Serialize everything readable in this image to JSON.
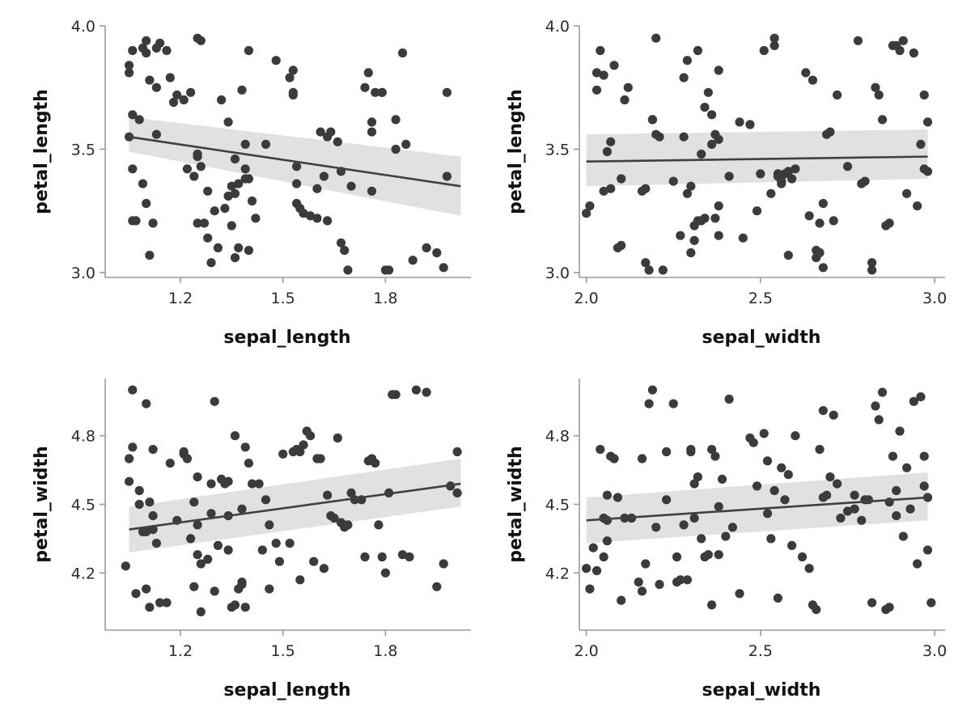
{
  "colors": {
    "points": "#3b3b3b",
    "fit_line": "#404040",
    "ci_band": "#d9d9d9",
    "axis": "#9a9a9a"
  },
  "chart_data": [
    {
      "type": "scatter",
      "title": "",
      "xlabel": "sepal_length",
      "ylabel": "petal_length",
      "xlim": [
        0.98,
        2.05
      ],
      "ylim": [
        2.98,
        4.0
      ],
      "xticks": [
        "1.2",
        "1.5",
        "1.8"
      ],
      "yticks": [
        "3.0",
        "3.5",
        "4.0"
      ],
      "grid": false,
      "fit": {
        "x": [
          1.05,
          2.02
        ],
        "y": [
          3.55,
          3.35
        ],
        "ci_lower": [
          3.49,
          3.23
        ],
        "ci_upper": [
          3.63,
          3.47
        ]
      },
      "x": [
        1.05,
        1.06,
        1.06,
        1.05,
        1.06,
        1.07,
        1.06,
        1.05,
        1.08,
        1.09,
        1.1,
        1.11,
        1.13,
        1.14,
        1.16,
        1.13,
        1.09,
        1.1,
        1.11,
        1.12,
        1.1,
        1.13,
        1.17,
        1.19,
        1.18,
        1.22,
        1.24,
        1.25,
        1.27,
        1.28,
        1.29,
        1.25,
        1.26,
        1.21,
        1.23,
        1.25,
        1.25,
        1.26,
        1.28,
        1.3,
        1.32,
        1.34,
        1.35,
        1.33,
        1.31,
        1.36,
        1.38,
        1.37,
        1.36,
        1.41,
        1.42,
        1.4,
        1.39,
        1.39,
        1.39,
        1.4,
        1.4,
        1.45,
        1.35,
        1.36,
        1.34,
        1.37,
        1.48,
        1.52,
        1.53,
        1.53,
        1.53,
        1.54,
        1.54,
        1.54,
        1.55,
        1.56,
        1.58,
        1.6,
        1.6,
        1.61,
        1.63,
        1.64,
        1.66,
        1.67,
        1.67,
        1.68,
        1.69,
        1.7,
        1.74,
        1.75,
        1.76,
        1.76,
        1.76,
        1.77,
        1.79,
        1.83,
        1.83,
        1.85,
        1.86,
        1.88,
        1.8,
        1.81,
        1.79,
        1.62,
        1.63,
        1.92,
        1.95,
        1.97,
        1.98,
        1.98
      ],
      "y": [
        3.84,
        3.9,
        3.64,
        3.55,
        3.42,
        3.21,
        3.21,
        3.81,
        3.62,
        3.91,
        3.89,
        3.78,
        3.91,
        3.93,
        3.9,
        3.56,
        3.36,
        3.28,
        3.07,
        3.2,
        3.94,
        3.75,
        3.79,
        3.72,
        3.69,
        3.42,
        3.39,
        3.2,
        3.2,
        3.14,
        3.04,
        3.95,
        3.94,
        3.7,
        3.73,
        3.48,
        3.47,
        3.43,
        3.33,
        3.25,
        3.7,
        3.61,
        3.35,
        3.26,
        3.1,
        3.06,
        3.74,
        3.36,
        3.32,
        3.29,
        3.22,
        3.9,
        3.52,
        3.38,
        3.42,
        3.38,
        3.09,
        3.52,
        3.19,
        3.46,
        3.31,
        3.1,
        3.86,
        3.79,
        3.72,
        3.82,
        3.73,
        3.43,
        3.36,
        3.28,
        3.26,
        3.24,
        3.23,
        3.22,
        3.34,
        3.57,
        3.55,
        3.57,
        3.53,
        3.41,
        3.12,
        3.09,
        3.01,
        3.35,
        3.75,
        3.81,
        3.61,
        3.57,
        3.33,
        3.73,
        3.73,
        3.62,
        3.5,
        3.89,
        3.52,
        3.05,
        3.01,
        3.01,
        3.73,
        3.39,
        3.21,
        3.1,
        3.08,
        3.02,
        3.39,
        3.73
      ]
    },
    {
      "type": "scatter",
      "title": "",
      "xlabel": "sepal_width",
      "ylabel": "petal_length",
      "xlim": [
        1.98,
        3.03
      ],
      "ylim": [
        2.98,
        4.0
      ],
      "xticks": [
        "2.0",
        "2.5",
        "3.0"
      ],
      "yticks": [
        "3.0",
        "3.5",
        "4.0"
      ],
      "grid": false,
      "fit": {
        "x": [
          2.0,
          2.98
        ],
        "y": [
          3.45,
          3.47
        ],
        "ci_lower": [
          3.35,
          3.38
        ],
        "ci_upper": [
          3.56,
          3.58
        ]
      },
      "x": [
        2.0,
        2.01,
        2.03,
        2.04,
        2.03,
        2.05,
        2.06,
        2.07,
        2.08,
        2.09,
        2.1,
        2.11,
        2.12,
        2.1,
        2.05,
        2.07,
        2.17,
        2.18,
        2.2,
        2.22,
        2.2,
        2.16,
        2.17,
        2.19,
        2.28,
        2.29,
        2.3,
        2.32,
        2.34,
        2.35,
        2.36,
        2.32,
        2.31,
        2.33,
        2.34,
        2.3,
        2.29,
        2.28,
        2.31,
        2.33,
        2.38,
        2.38,
        2.38,
        2.36,
        2.37,
        2.37,
        2.38,
        2.45,
        2.47,
        2.49,
        2.51,
        2.54,
        2.54,
        2.55,
        2.55,
        2.56,
        2.57,
        2.58,
        2.59,
        2.58,
        2.6,
        2.63,
        2.64,
        2.65,
        2.66,
        2.67,
        2.66,
        2.67,
        2.68,
        2.69,
        2.7,
        2.71,
        2.72,
        2.75,
        2.78,
        2.79,
        2.8,
        2.82,
        2.82,
        2.83,
        2.84,
        2.85,
        2.86,
        2.87,
        2.88,
        2.89,
        2.9,
        2.91,
        2.92,
        2.94,
        2.95,
        2.96,
        2.97,
        2.97,
        2.98,
        2.98,
        2.68,
        2.5,
        2.53,
        2.56,
        2.44,
        2.41,
        2.19,
        2.25,
        2.21,
        2.27
      ],
      "y": [
        3.24,
        3.27,
        3.74,
        3.9,
        3.81,
        3.8,
        3.49,
        3.53,
        3.84,
        3.1,
        3.11,
        3.7,
        3.75,
        3.38,
        3.33,
        3.34,
        3.04,
        3.01,
        3.95,
        3.01,
        3.56,
        3.33,
        3.34,
        3.62,
        3.79,
        3.32,
        3.35,
        3.21,
        3.22,
        3.73,
        3.64,
        3.9,
        3.13,
        3.48,
        3.67,
        3.08,
        3.86,
        3.55,
        3.19,
        3.21,
        3.54,
        3.82,
        3.27,
        3.52,
        3.56,
        3.22,
        3.15,
        3.14,
        3.6,
        3.25,
        3.9,
        3.92,
        3.95,
        3.4,
        3.39,
        3.37,
        3.4,
        3.41,
        3.38,
        3.07,
        3.42,
        3.81,
        3.23,
        3.78,
        3.09,
        3.2,
        3.06,
        3.08,
        3.28,
        3.56,
        3.57,
        3.21,
        3.72,
        3.43,
        3.94,
        3.36,
        3.37,
        3.04,
        3.01,
        3.75,
        3.72,
        3.62,
        3.19,
        3.2,
        3.92,
        3.92,
        3.9,
        3.94,
        3.32,
        3.89,
        3.27,
        3.52,
        3.72,
        3.42,
        3.41,
        3.61,
        3.02,
        3.4,
        3.32,
        3.36,
        3.61,
        3.39,
        3.62,
        3.37,
        3.55,
        3.15
      ]
    },
    {
      "type": "scatter",
      "title": "",
      "xlabel": "sepal_length",
      "ylabel": "petal_width",
      "xlim": [
        0.98,
        2.05
      ],
      "ylim": [
        3.95,
        5.05
      ],
      "xticks": [
        "1.2",
        "1.5",
        "1.8"
      ],
      "yticks": [
        "4.2",
        "4.5",
        "4.8"
      ],
      "grid": false,
      "fit": {
        "x": [
          1.05,
          2.02
        ],
        "y": [
          4.39,
          4.59
        ],
        "ci_lower": [
          4.29,
          4.49
        ],
        "ci_upper": [
          4.49,
          4.7
        ]
      },
      "x": [
        1.04,
        1.05,
        1.06,
        1.05,
        1.07,
        1.06,
        1.08,
        1.08,
        1.1,
        1.11,
        1.1,
        1.12,
        1.13,
        1.14,
        1.16,
        1.09,
        1.11,
        1.12,
        1.17,
        1.12,
        1.1,
        1.21,
        1.22,
        1.24,
        1.23,
        1.25,
        1.25,
        1.26,
        1.28,
        1.29,
        1.3,
        1.31,
        1.32,
        1.33,
        1.34,
        1.34,
        1.35,
        1.36,
        1.37,
        1.38,
        1.38,
        1.39,
        1.39,
        1.4,
        1.41,
        1.43,
        1.44,
        1.45,
        1.46,
        1.48,
        1.49,
        1.5,
        1.52,
        1.53,
        1.54,
        1.55,
        1.56,
        1.57,
        1.58,
        1.59,
        1.6,
        1.61,
        1.62,
        1.63,
        1.64,
        1.65,
        1.66,
        1.67,
        1.68,
        1.69,
        1.7,
        1.71,
        1.73,
        1.74,
        1.75,
        1.76,
        1.77,
        1.78,
        1.79,
        1.8,
        1.81,
        1.82,
        1.83,
        1.85,
        1.87,
        1.89,
        1.92,
        1.95,
        1.97,
        1.99,
        2.01,
        2.01,
        1.26,
        1.21,
        1.19,
        1.25,
        1.29,
        1.36,
        1.34,
        1.55,
        1.38,
        1.46,
        1.3,
        1.24
      ],
      "y": [
        4.23,
        4.7,
        4.75,
        4.6,
        4.11,
        5.0,
        4.56,
        4.5,
        4.38,
        4.05,
        4.94,
        4.74,
        4.33,
        4.07,
        4.07,
        4.38,
        4.51,
        4.39,
        4.68,
        4.45,
        4.13,
        4.73,
        4.7,
        4.51,
        4.35,
        4.41,
        4.28,
        4.24,
        4.26,
        4.59,
        4.95,
        4.32,
        4.61,
        4.59,
        4.3,
        4.6,
        4.05,
        4.06,
        4.13,
        4.16,
        4.48,
        4.75,
        4.05,
        4.68,
        4.59,
        4.59,
        4.3,
        4.52,
        4.41,
        4.33,
        4.25,
        4.72,
        4.33,
        4.73,
        4.74,
        4.73,
        4.76,
        4.82,
        4.8,
        4.25,
        4.7,
        4.7,
        4.22,
        4.54,
        4.45,
        4.44,
        4.79,
        4.42,
        4.4,
        4.41,
        4.55,
        4.52,
        4.52,
        4.27,
        4.69,
        4.7,
        4.68,
        4.41,
        4.27,
        4.2,
        4.55,
        4.98,
        4.98,
        4.28,
        4.27,
        5.0,
        4.99,
        4.14,
        4.24,
        4.58,
        4.55,
        4.73,
        4.03,
        4.72,
        4.43,
        4.62,
        4.46,
        4.8,
        4.45,
        4.17,
        4.15,
        4.13,
        4.12,
        4.14
      ]
    },
    {
      "type": "scatter",
      "title": "",
      "xlabel": "sepal_width",
      "ylabel": "petal_width",
      "xlim": [
        1.98,
        3.03
      ],
      "ylim": [
        3.95,
        5.05
      ],
      "xticks": [
        "2.0",
        "2.5",
        "3.0"
      ],
      "yticks": [
        "4.2",
        "4.5",
        "4.8"
      ],
      "grid": false,
      "fit": {
        "x": [
          2.0,
          2.98
        ],
        "y": [
          4.43,
          4.53
        ],
        "ci_lower": [
          4.33,
          4.43
        ],
        "ci_upper": [
          4.53,
          4.64
        ]
      },
      "x": [
        2.0,
        2.01,
        2.02,
        2.03,
        2.04,
        2.05,
        2.05,
        2.06,
        2.06,
        2.07,
        2.08,
        2.09,
        2.1,
        2.11,
        2.15,
        2.16,
        2.17,
        2.18,
        2.19,
        2.2,
        2.21,
        2.23,
        2.25,
        2.26,
        2.27,
        2.28,
        2.29,
        2.3,
        2.3,
        2.31,
        2.32,
        2.33,
        2.34,
        2.35,
        2.36,
        2.37,
        2.38,
        2.38,
        2.39,
        2.4,
        2.41,
        2.44,
        2.47,
        2.48,
        2.49,
        2.51,
        2.52,
        2.53,
        2.54,
        2.55,
        2.56,
        2.57,
        2.58,
        2.59,
        2.6,
        2.62,
        2.64,
        2.65,
        2.66,
        2.67,
        2.68,
        2.69,
        2.7,
        2.71,
        2.72,
        2.73,
        2.75,
        2.77,
        2.79,
        2.8,
        2.81,
        2.82,
        2.83,
        2.84,
        2.85,
        2.86,
        2.87,
        2.88,
        2.89,
        2.9,
        2.91,
        2.92,
        2.93,
        2.94,
        2.95,
        2.96,
        2.97,
        2.97,
        2.98,
        2.98,
        2.99,
        2.26,
        2.36,
        2.16,
        2.42,
        2.06,
        2.13,
        2.31,
        2.23,
        2.52,
        2.68,
        2.77,
        2.87,
        2.89
      ],
      "y": [
        4.22,
        4.13,
        4.31,
        4.21,
        4.74,
        4.44,
        4.27,
        4.34,
        4.54,
        4.71,
        4.7,
        4.53,
        4.08,
        4.44,
        4.16,
        4.7,
        4.24,
        4.94,
        5.0,
        4.4,
        4.15,
        4.73,
        4.94,
        4.27,
        4.17,
        4.41,
        4.17,
        4.74,
        4.73,
        4.59,
        4.62,
        4.35,
        4.27,
        4.28,
        4.74,
        4.71,
        4.28,
        4.49,
        4.61,
        4.36,
        4.96,
        4.11,
        4.79,
        4.77,
        4.58,
        4.81,
        4.69,
        4.35,
        4.56,
        4.09,
        4.66,
        4.52,
        4.63,
        4.32,
        4.8,
        4.27,
        4.22,
        4.06,
        4.04,
        4.74,
        4.91,
        4.54,
        4.62,
        4.89,
        4.59,
        4.44,
        4.47,
        4.48,
        4.43,
        4.52,
        4.52,
        4.07,
        4.93,
        4.87,
        4.99,
        4.04,
        4.05,
        4.71,
        4.56,
        4.82,
        4.36,
        4.66,
        4.48,
        4.95,
        4.24,
        4.97,
        4.71,
        4.58,
        4.3,
        4.53,
        4.07,
        4.16,
        4.06,
        4.12,
        4.4,
        4.43,
        4.44,
        4.44,
        4.52,
        4.46,
        4.53,
        4.54,
        4.51,
        4.45
      ]
    }
  ]
}
